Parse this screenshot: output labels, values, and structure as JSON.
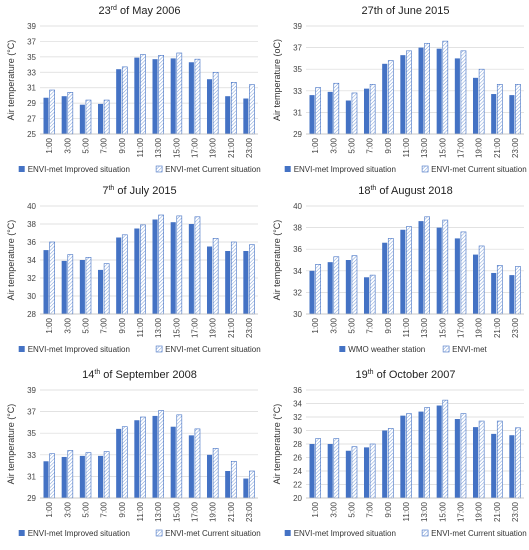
{
  "chart_data": [
    {
      "type": "bar",
      "title_main": "23",
      "title_sup": "rd",
      "title_rest": " of May 2006",
      "ylabel": "Air temperature (°C)",
      "ylim": [
        25,
        39
      ],
      "yticks": [
        25,
        27,
        29,
        31,
        33,
        35,
        37,
        39
      ],
      "categories": [
        "1:00",
        "3:00",
        "5:00",
        "7:00",
        "9:00",
        "11:00",
        "13:00",
        "15:00",
        "17:00",
        "19:00",
        "21:00",
        "23:00"
      ],
      "series": [
        {
          "name": "ENVI-met Improved situation",
          "values": [
            29.7,
            29.9,
            28.8,
            28.9,
            33.4,
            34.9,
            34.7,
            34.8,
            34.3,
            32.1,
            29.9,
            29.6
          ]
        },
        {
          "name": "ENVI-met Current situation",
          "values": [
            30.7,
            30.4,
            29.4,
            29.4,
            33.7,
            35.3,
            35.2,
            35.5,
            34.7,
            33.0,
            31.7,
            31.4
          ]
        }
      ]
    },
    {
      "type": "bar",
      "title_main": "27th of June 2015",
      "title_sup": "",
      "title_rest": "",
      "ylabel": "Air temperature (oC)",
      "ylim": [
        29,
        39
      ],
      "yticks": [
        29,
        31,
        33,
        35,
        37,
        39
      ],
      "categories": [
        "1:00",
        "3:00",
        "5:00",
        "7:00",
        "9:00",
        "11:00",
        "13:00",
        "15:00",
        "17:00",
        "19:00",
        "21:00",
        "23:00"
      ],
      "series": [
        {
          "name": "ENVI-met Improved situation",
          "values": [
            32.6,
            32.9,
            32.1,
            33.2,
            35.5,
            36.3,
            37.0,
            36.9,
            36.0,
            34.2,
            32.7,
            32.6
          ]
        },
        {
          "name": "ENVI-met Current situation",
          "values": [
            33.3,
            33.7,
            32.8,
            33.6,
            35.8,
            36.7,
            37.4,
            37.6,
            36.7,
            35.0,
            33.6,
            33.6
          ]
        }
      ]
    },
    {
      "type": "bar",
      "title_main": "7",
      "title_sup": "th",
      "title_rest": " of July 2015",
      "ylabel": "Air temperature (°C)",
      "ylim": [
        28,
        40
      ],
      "yticks": [
        28,
        30,
        32,
        34,
        36,
        38,
        40
      ],
      "categories": [
        "1:00",
        "3:00",
        "5:00",
        "7:00",
        "9:00",
        "11:00",
        "13:00",
        "15:00",
        "17:00",
        "19:00",
        "21:00",
        "23:00"
      ],
      "series": [
        {
          "name": "ENVI-met Improved situation",
          "values": [
            35.1,
            33.9,
            34.0,
            32.9,
            36.5,
            37.5,
            38.5,
            38.2,
            38.0,
            35.5,
            35.0,
            35.0
          ]
        },
        {
          "name": "ENVI-met Current situation",
          "values": [
            36.0,
            34.6,
            34.3,
            33.6,
            36.8,
            37.9,
            39.0,
            38.9,
            38.8,
            36.4,
            36.0,
            35.7
          ]
        }
      ]
    },
    {
      "type": "bar",
      "title_main": "18",
      "title_sup": "th",
      "title_rest": " of August 2018",
      "ylabel": "Air temperature (°C)",
      "ylim": [
        30,
        40
      ],
      "yticks": [
        30,
        32,
        34,
        36,
        38,
        40
      ],
      "categories": [
        "1:00",
        "3:00",
        "5:00",
        "7:00",
        "9:00",
        "11:00",
        "13:00",
        "15:00",
        "17:00",
        "19:00",
        "21:00",
        "23:00"
      ],
      "series": [
        {
          "name": "WMO weather station",
          "values": [
            34.0,
            34.8,
            35.0,
            33.4,
            36.6,
            37.8,
            38.6,
            38.0,
            37.0,
            35.5,
            33.8,
            33.6
          ]
        },
        {
          "name": "ENVI-met",
          "values": [
            34.6,
            35.3,
            35.4,
            33.6,
            37.0,
            38.1,
            39.0,
            38.7,
            37.6,
            36.3,
            34.5,
            34.4
          ]
        }
      ]
    },
    {
      "type": "bar",
      "title_main": "14",
      "title_sup": "th",
      "title_rest": " of September 2008",
      "ylabel": "Air temperature (°C)",
      "ylim": [
        29,
        39
      ],
      "yticks": [
        29,
        31,
        33,
        35,
        37,
        39
      ],
      "categories": [
        "1:00",
        "3:00",
        "5:00",
        "7:00",
        "9:00",
        "11:00",
        "13:00",
        "15:00",
        "17:00",
        "19:00",
        "21:00",
        "23:00"
      ],
      "series": [
        {
          "name": "ENVI-met Improved situation",
          "values": [
            32.4,
            32.8,
            32.9,
            32.9,
            35.4,
            36.2,
            36.6,
            35.6,
            34.8,
            33.0,
            31.5,
            30.8
          ]
        },
        {
          "name": "ENVI-met Current situation",
          "values": [
            33.1,
            33.4,
            33.2,
            33.3,
            35.6,
            36.5,
            37.1,
            36.7,
            35.4,
            33.6,
            32.4,
            31.5
          ]
        }
      ]
    },
    {
      "type": "bar",
      "title_main": "19",
      "title_sup": "th",
      "title_rest": " of October 2007",
      "ylabel": "Air temperature (°C)",
      "ylim": [
        20,
        36
      ],
      "yticks": [
        20,
        22,
        24,
        26,
        28,
        30,
        32,
        34,
        36
      ],
      "categories": [
        "1:00",
        "3:00",
        "5:00",
        "7:00",
        "9:00",
        "11:00",
        "13:00",
        "15:00",
        "17:00",
        "19:00",
        "21:00",
        "23:00"
      ],
      "series": [
        {
          "name": "ENVI-met Improved situation",
          "values": [
            28.0,
            28.0,
            27.0,
            27.5,
            30.0,
            32.2,
            32.8,
            33.7,
            31.7,
            30.5,
            29.5,
            29.3
          ]
        },
        {
          "name": "ENVI-met Current situation",
          "values": [
            28.8,
            28.8,
            27.6,
            28.0,
            30.3,
            32.5,
            33.4,
            34.5,
            32.5,
            31.4,
            31.4,
            30.4
          ]
        }
      ]
    }
  ]
}
